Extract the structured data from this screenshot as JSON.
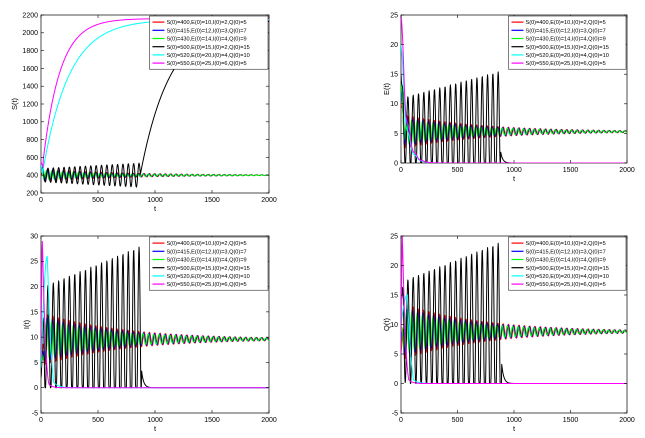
{
  "legend_entries": [
    "S(0)=400,E(0)=10,I(0)=2,Q(0)=5",
    "S(0)=415,E(0)=12,I(0)=3,Q(0)=7",
    "S(0)=430,E(0)=14,I(0)=4,Q(0)=9",
    "S(0)=500,E(0)=15,I(0)=2,Q(0)=15",
    "S(0)=520,E(0)=20,I(0)=4,Q(0)=10",
    "S(0)=550,E(0)=25,I(0)=6,Q(0)=5"
  ],
  "series_colors": [
    "#ff0000",
    "#0000ff",
    "#00ff00",
    "#000000",
    "#00ffff",
    "#ff00ff"
  ],
  "chart_data": [
    {
      "type": "line",
      "xlabel": "t",
      "ylabel": "S(t)",
      "xlim": [
        0,
        2000
      ],
      "ylim": [
        200,
        2200
      ],
      "xticks": [
        "0",
        "500",
        "1000",
        "1500",
        "2000"
      ],
      "yticks": [
        "200",
        "400",
        "600",
        "800",
        "1000",
        "1200",
        "1400",
        "1600",
        "1800",
        "2000",
        "2200"
      ],
      "grid": false,
      "legend": "top-right",
      "equilibrium": 400,
      "series": [
        {
          "name": "S(0)=400,E(0)=10,I(0)=2,Q(0)=5",
          "behavior": "converges",
          "y0": 400,
          "final": 400
        },
        {
          "name": "S(0)=415,E(0)=12,I(0)=3,Q(0)=7",
          "behavior": "converges",
          "y0": 415,
          "final": 400
        },
        {
          "name": "S(0)=430,E(0)=14,I(0)=4,Q(0)=9",
          "behavior": "converges",
          "y0": 430,
          "final": 400
        },
        {
          "name": "S(0)=500,E(0)=15,I(0)=2,Q(0)=15",
          "behavior": "oscillates-then-rises",
          "y0": 500,
          "oscillation_end": 870,
          "peak": 560,
          "final": 2150
        },
        {
          "name": "S(0)=520,E(0)=20,I(0)=4,Q(0)=10",
          "behavior": "rises",
          "y0": 520,
          "final": 2150
        },
        {
          "name": "S(0)=550,E(0)=25,I(0)=6,Q(0)=5",
          "behavior": "rises",
          "y0": 550,
          "final": 2160
        }
      ]
    },
    {
      "type": "line",
      "xlabel": "t",
      "ylabel": "E(t)",
      "xlim": [
        0,
        2000
      ],
      "ylim": [
        0,
        25
      ],
      "xticks": [
        "0",
        "500",
        "1000",
        "1500",
        "2000"
      ],
      "yticks": [
        "0",
        "5",
        "10",
        "15",
        "20",
        "25"
      ],
      "grid": false,
      "legend": "top-right",
      "equilibrium": 5.3,
      "series": [
        {
          "name": "S(0)=400,E(0)=10,I(0)=2,Q(0)=5",
          "behavior": "converges",
          "y0": 10,
          "final": 5.3
        },
        {
          "name": "S(0)=415,E(0)=12,I(0)=3,Q(0)=7",
          "behavior": "converges",
          "y0": 12,
          "final": 5.3
        },
        {
          "name": "S(0)=430,E(0)=14,I(0)=4,Q(0)=9",
          "behavior": "converges",
          "y0": 14,
          "final": 5.3
        },
        {
          "name": "S(0)=500,E(0)=15,I(0)=2,Q(0)=15",
          "behavior": "oscillates-then-dies",
          "y0": 15,
          "oscillation_end": 880,
          "peak": 15.5,
          "final": 0
        },
        {
          "name": "S(0)=520,E(0)=20,I(0)=4,Q(0)=10",
          "behavior": "dies",
          "y0": 20,
          "final": 0
        },
        {
          "name": "S(0)=550,E(0)=25,I(0)=6,Q(0)=5",
          "behavior": "dies",
          "y0": 25,
          "final": 0
        }
      ]
    },
    {
      "type": "line",
      "xlabel": "t",
      "ylabel": "I(t)",
      "xlim": [
        0,
        2000
      ],
      "ylim": [
        -5,
        30
      ],
      "xticks": [
        "0",
        "500",
        "1000",
        "1500",
        "2000"
      ],
      "yticks": [
        "-5",
        "0",
        "5",
        "10",
        "15",
        "20",
        "25",
        "30"
      ],
      "grid": false,
      "legend": "top-right",
      "equilibrium": 9.6,
      "series": [
        {
          "name": "S(0)=400,E(0)=10,I(0)=2,Q(0)=5",
          "behavior": "converges",
          "y0": 2,
          "final": 9.6
        },
        {
          "name": "S(0)=415,E(0)=12,I(0)=3,Q(0)=7",
          "behavior": "converges",
          "y0": 3,
          "final": 9.6
        },
        {
          "name": "S(0)=430,E(0)=14,I(0)=4,Q(0)=9",
          "behavior": "converges",
          "y0": 4,
          "final": 9.6
        },
        {
          "name": "S(0)=500,E(0)=15,I(0)=2,Q(0)=15",
          "behavior": "oscillates-then-dies",
          "y0": 2,
          "oscillation_end": 880,
          "peak": 28,
          "final": 0
        },
        {
          "name": "S(0)=520,E(0)=20,I(0)=4,Q(0)=10",
          "behavior": "spike-then-dies",
          "y0": 4,
          "peak": 26,
          "final": 0
        },
        {
          "name": "S(0)=550,E(0)=25,I(0)=6,Q(0)=5",
          "behavior": "spike-then-dies",
          "y0": 6,
          "peak": 29,
          "final": 0
        }
      ]
    },
    {
      "type": "line",
      "xlabel": "t",
      "ylabel": "Q(t)",
      "xlim": [
        0,
        2000
      ],
      "ylim": [
        -5,
        25
      ],
      "xticks": [
        "0",
        "500",
        "1000",
        "1500",
        "2000"
      ],
      "yticks": [
        "-5",
        "0",
        "5",
        "10",
        "15",
        "20",
        "25"
      ],
      "grid": false,
      "legend": "top-right",
      "equilibrium": 8.8,
      "series": [
        {
          "name": "S(0)=400,E(0)=10,I(0)=2,Q(0)=5",
          "behavior": "converges",
          "y0": 5,
          "final": 8.8
        },
        {
          "name": "S(0)=415,E(0)=12,I(0)=3,Q(0)=7",
          "behavior": "converges",
          "y0": 7,
          "final": 8.8
        },
        {
          "name": "S(0)=430,E(0)=14,I(0)=4,Q(0)=9",
          "behavior": "converges",
          "y0": 9,
          "final": 8.8
        },
        {
          "name": "S(0)=500,E(0)=15,I(0)=2,Q(0)=15",
          "behavior": "oscillates-then-dies",
          "y0": 15,
          "oscillation_end": 890,
          "peak": 24,
          "final": 0
        },
        {
          "name": "S(0)=520,E(0)=20,I(0)=4,Q(0)=10",
          "behavior": "spike-then-dies",
          "y0": 10,
          "peak": 15,
          "final": 0
        },
        {
          "name": "S(0)=550,E(0)=25,I(0)=6,Q(0)=5",
          "behavior": "spike-then-dies",
          "y0": 5,
          "peak": 25,
          "final": 0
        }
      ]
    }
  ]
}
